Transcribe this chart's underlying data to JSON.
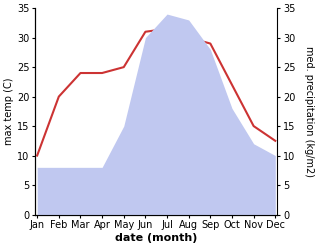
{
  "months": [
    "Jan",
    "Feb",
    "Mar",
    "Apr",
    "May",
    "Jun",
    "Jul",
    "Aug",
    "Sep",
    "Oct",
    "Nov",
    "Dec"
  ],
  "temperature": [
    10,
    20,
    24,
    24,
    25,
    31,
    31.5,
    30,
    29,
    22,
    15,
    12.5
  ],
  "precipitation": [
    8,
    8,
    8,
    8,
    15,
    30,
    34,
    33,
    28,
    18,
    12,
    10
  ],
  "temp_color": "#cc3333",
  "precip_color": "#c0c8f0",
  "ylim_left": [
    0,
    35
  ],
  "ylim_right": [
    0,
    35
  ],
  "xlabel": "date (month)",
  "ylabel_left": "max temp (C)",
  "ylabel_right": "med. precipitation (kg/m2)",
  "bg_color": "#ffffff",
  "label_fontsize": 8,
  "tick_fontsize": 7,
  "yticks": [
    0,
    5,
    10,
    15,
    20,
    25,
    30,
    35
  ]
}
